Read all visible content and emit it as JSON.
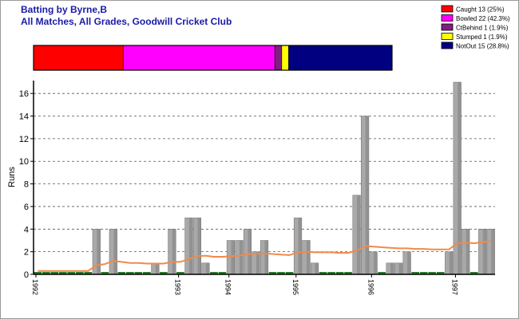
{
  "header": {
    "title": "Batting by Byrne,B",
    "subtitle": "All Matches, All Grades, Goodwill Cricket Club"
  },
  "chart_data": {
    "type": "bar",
    "ylabel": "Runs",
    "ylim": [
      0,
      17
    ],
    "yticks": [
      0,
      2,
      4,
      6,
      8,
      10,
      12,
      14,
      16
    ],
    "grid": true,
    "legend_position": "top-right",
    "dismissals": [
      {
        "label": "Caught 13 (25%)",
        "count": 13,
        "pct": 25.0,
        "color": "#ff0000"
      },
      {
        "label": "Bowled 22 (42.3%)",
        "count": 22,
        "pct": 42.3,
        "color": "#ff00ff"
      },
      {
        "label": "CtBehind 1 (1.9%)",
        "count": 1,
        "pct": 1.9,
        "color": "#7f1f7f"
      },
      {
        "label": "Stumped 1 (1.9%)",
        "count": 1,
        "pct": 1.9,
        "color": "#ffff00"
      },
      {
        "label": "NotOut 15 (28.8%)",
        "count": 15,
        "pct": 28.8,
        "color": "#000080"
      }
    ],
    "x_ticks": [
      {
        "label": "1992",
        "index": 0
      },
      {
        "label": "1993",
        "index": 17
      },
      {
        "label": "1994",
        "index": 23
      },
      {
        "label": "1995",
        "index": 31
      },
      {
        "label": "1996",
        "index": 40
      },
      {
        "label": "1997",
        "index": 50
      }
    ],
    "innings": [
      0,
      0,
      0,
      0,
      0,
      0,
      0,
      4,
      0,
      4,
      0,
      0,
      0,
      0,
      1,
      0,
      4,
      0,
      5,
      5,
      1,
      0,
      0,
      3,
      3,
      4,
      2,
      3,
      0,
      0,
      0,
      5,
      3,
      1,
      0,
      0,
      0,
      0,
      7,
      14,
      2,
      0,
      1,
      1,
      2,
      0,
      0,
      0,
      0,
      2,
      17,
      4,
      0,
      4,
      4
    ],
    "average": [
      0.3,
      0.3,
      0.3,
      0.3,
      0.3,
      0.3,
      0.3,
      0.8,
      0.9,
      1.2,
      1.1,
      1.0,
      1.0,
      0.95,
      0.95,
      0.95,
      1.1,
      1.1,
      1.35,
      1.6,
      1.65,
      1.55,
      1.55,
      1.6,
      1.65,
      1.8,
      1.8,
      1.85,
      1.8,
      1.75,
      1.7,
      1.95,
      2.0,
      1.95,
      1.95,
      1.95,
      1.9,
      1.9,
      2.1,
      2.5,
      2.45,
      2.4,
      2.35,
      2.3,
      2.3,
      2.25,
      2.25,
      2.2,
      2.2,
      2.2,
      2.75,
      2.8,
      2.75,
      2.85,
      2.95
    ],
    "series": [
      {
        "name": "Runs",
        "color": "#a9a9a9",
        "zero_color": "#2a7a2a"
      },
      {
        "name": "Average",
        "color": "#f08a4b"
      }
    ]
  }
}
